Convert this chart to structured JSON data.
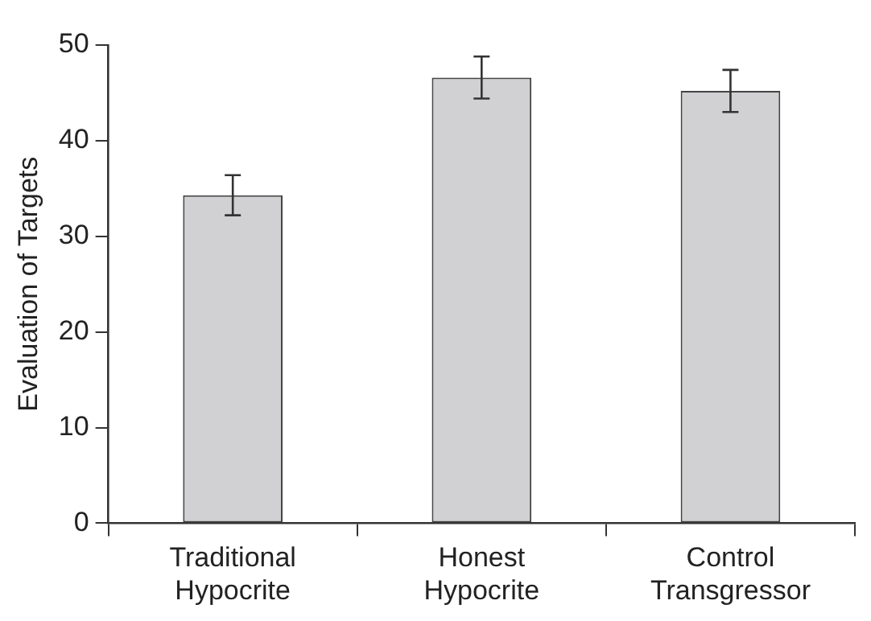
{
  "chart_data": {
    "type": "bar",
    "ylabel": "Evaluation of Targets",
    "categories": [
      "Traditional Hypocrite",
      "Honest Hypocrite",
      "Control Transgressor"
    ],
    "values": [
      34.3,
      46.6,
      45.2
    ],
    "errors": [
      2.1,
      2.2,
      2.2
    ],
    "color": "#d1d1d3",
    "ylim": [
      0,
      50
    ],
    "yticks": [
      0,
      10,
      20,
      30,
      40,
      50
    ],
    "grid": false,
    "legend": false
  }
}
